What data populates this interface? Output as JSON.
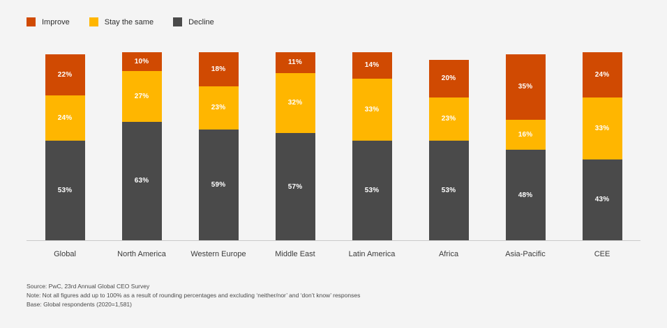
{
  "colors": {
    "improve": "#d04a02",
    "stay_the_same": "#ffb600",
    "decline": "#4a4a4a",
    "background": "#f4f4f4",
    "axis_line": "#c9c9c9",
    "value_label_text": "#ffffff"
  },
  "legend": [
    {
      "label": "Improve",
      "color": "#d04a02"
    },
    {
      "label": "Stay the same",
      "color": "#ffb600"
    },
    {
      "label": "Decline",
      "color": "#4a4a4a"
    }
  ],
  "chart_data": {
    "type": "bar",
    "stacked": true,
    "title": "",
    "xlabel": "",
    "ylabel": "",
    "ylim": [
      0,
      100
    ],
    "grid": false,
    "legend_position": "top-left",
    "value_suffix": "%",
    "categories": [
      "Global",
      "North America",
      "Western Europe",
      "Middle East",
      "Latin America",
      "Africa",
      "Asia-Pacific",
      "CEE"
    ],
    "series": [
      {
        "name": "Improve",
        "color": "#d04a02",
        "values": [
          22,
          10,
          18,
          11,
          14,
          20,
          35,
          24
        ]
      },
      {
        "name": "Stay the same",
        "color": "#ffb600",
        "values": [
          24,
          27,
          23,
          32,
          33,
          23,
          16,
          33
        ]
      },
      {
        "name": "Decline",
        "color": "#4a4a4a",
        "values": [
          53,
          63,
          59,
          57,
          53,
          53,
          48,
          43
        ]
      }
    ]
  },
  "footer": {
    "line1": "Source: PwC, 23rd Annual Global CEO Survey",
    "line2": "Note: Not all figures add up to 100% as a result of rounding percentages and excluding ‘neither/nor’ and ‘don’t know’ responses",
    "line3": "Base: Global respondents (2020=1,581)"
  }
}
